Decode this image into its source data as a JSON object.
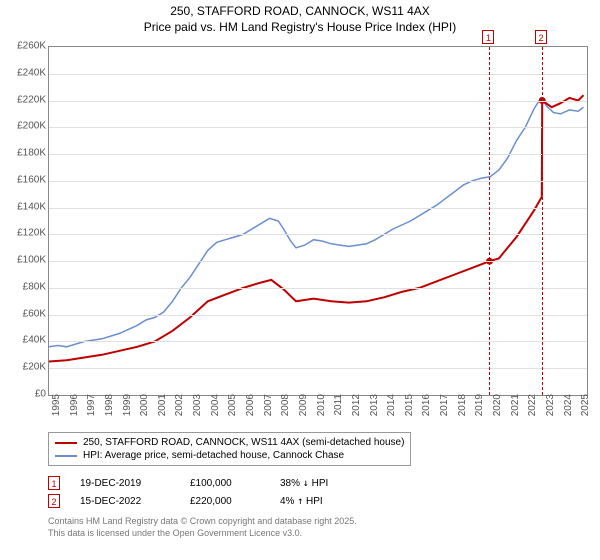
{
  "title": {
    "line1": "250, STAFFORD ROAD, CANNOCK, WS11 4AX",
    "line2": "Price paid vs. HM Land Registry's House Price Index (HPI)"
  },
  "chart": {
    "type": "line",
    "background_color": "#ffffff",
    "grid_color": "#e0e0e0",
    "axis_color": "#888888",
    "ylim": [
      0,
      260000
    ],
    "ytick_step": 20000,
    "ytick_prefix": "£",
    "ytick_suffix": "K",
    "xlim": [
      1995,
      2025.5
    ],
    "xtick_step": 1,
    "label_fontsize": 10,
    "series": [
      {
        "name": "price_paid",
        "label": "250, STAFFORD ROAD, CANNOCK, WS11 4AX (semi-detached house)",
        "color": "#c00000",
        "line_width": 2,
        "points": [
          [
            1995.0,
            25000
          ],
          [
            1996.0,
            26000
          ],
          [
            1997.0,
            28000
          ],
          [
            1998.0,
            30000
          ],
          [
            1999.0,
            33000
          ],
          [
            2000.0,
            36000
          ],
          [
            2001.0,
            40000
          ],
          [
            2002.0,
            48000
          ],
          [
            2003.0,
            58000
          ],
          [
            2004.0,
            70000
          ],
          [
            2005.0,
            75000
          ],
          [
            2006.0,
            80000
          ],
          [
            2007.0,
            84000
          ],
          [
            2007.6,
            86000
          ],
          [
            2008.3,
            79000
          ],
          [
            2009.0,
            70000
          ],
          [
            2010.0,
            72000
          ],
          [
            2011.0,
            70000
          ],
          [
            2012.0,
            69000
          ],
          [
            2013.0,
            70000
          ],
          [
            2014.0,
            73000
          ],
          [
            2015.0,
            77000
          ],
          [
            2016.0,
            80000
          ],
          [
            2017.0,
            85000
          ],
          [
            2018.0,
            90000
          ],
          [
            2019.0,
            95000
          ],
          [
            2019.97,
            100000
          ],
          [
            2020.5,
            102000
          ],
          [
            2021.0,
            110000
          ],
          [
            2021.5,
            118000
          ],
          [
            2022.0,
            128000
          ],
          [
            2022.5,
            138000
          ],
          [
            2022.94,
            148000
          ],
          [
            2022.96,
            220000
          ],
          [
            2023.5,
            215000
          ],
          [
            2024.0,
            218000
          ],
          [
            2024.5,
            222000
          ],
          [
            2025.0,
            220000
          ],
          [
            2025.3,
            224000
          ]
        ]
      },
      {
        "name": "hpi",
        "label": "HPI: Average price, semi-detached house, Cannock Chase",
        "color": "#6a8fcf",
        "line_width": 1.5,
        "points": [
          [
            1995.0,
            36000
          ],
          [
            1995.5,
            37000
          ],
          [
            1996.0,
            36000
          ],
          [
            1996.5,
            38000
          ],
          [
            1997.0,
            40000
          ],
          [
            1997.5,
            41000
          ],
          [
            1998.0,
            42000
          ],
          [
            1998.5,
            44000
          ],
          [
            1999.0,
            46000
          ],
          [
            1999.5,
            49000
          ],
          [
            2000.0,
            52000
          ],
          [
            2000.5,
            56000
          ],
          [
            2001.0,
            58000
          ],
          [
            2001.5,
            62000
          ],
          [
            2002.0,
            70000
          ],
          [
            2002.5,
            80000
          ],
          [
            2003.0,
            88000
          ],
          [
            2003.5,
            98000
          ],
          [
            2004.0,
            108000
          ],
          [
            2004.5,
            114000
          ],
          [
            2005.0,
            116000
          ],
          [
            2005.5,
            118000
          ],
          [
            2006.0,
            120000
          ],
          [
            2006.5,
            124000
          ],
          [
            2007.0,
            128000
          ],
          [
            2007.5,
            132000
          ],
          [
            2008.0,
            130000
          ],
          [
            2008.3,
            124000
          ],
          [
            2008.7,
            115000
          ],
          [
            2009.0,
            110000
          ],
          [
            2009.5,
            112000
          ],
          [
            2010.0,
            116000
          ],
          [
            2010.5,
            115000
          ],
          [
            2011.0,
            113000
          ],
          [
            2011.5,
            112000
          ],
          [
            2012.0,
            111000
          ],
          [
            2012.5,
            112000
          ],
          [
            2013.0,
            113000
          ],
          [
            2013.5,
            116000
          ],
          [
            2014.0,
            120000
          ],
          [
            2014.5,
            124000
          ],
          [
            2015.0,
            127000
          ],
          [
            2015.5,
            130000
          ],
          [
            2016.0,
            134000
          ],
          [
            2016.5,
            138000
          ],
          [
            2017.0,
            142000
          ],
          [
            2017.5,
            147000
          ],
          [
            2018.0,
            152000
          ],
          [
            2018.5,
            157000
          ],
          [
            2019.0,
            160000
          ],
          [
            2019.5,
            162000
          ],
          [
            2020.0,
            163000
          ],
          [
            2020.5,
            168000
          ],
          [
            2021.0,
            177000
          ],
          [
            2021.5,
            190000
          ],
          [
            2022.0,
            200000
          ],
          [
            2022.5,
            214000
          ],
          [
            2022.9,
            222000
          ],
          [
            2023.2,
            216000
          ],
          [
            2023.6,
            211000
          ],
          [
            2024.0,
            210000
          ],
          [
            2024.5,
            213000
          ],
          [
            2025.0,
            212000
          ],
          [
            2025.3,
            215000
          ]
        ]
      }
    ],
    "markers": [
      {
        "id": "1",
        "x": 2019.97,
        "date": "19-DEC-2019",
        "price": "£100,000",
        "delta_pct": "38%",
        "delta_dir": "↓",
        "delta_label": "HPI",
        "point_y": 100000,
        "point_color": "#c00000",
        "box_border": "#c00000",
        "box_text": "#c00000"
      },
      {
        "id": "2",
        "x": 2022.96,
        "date": "15-DEC-2022",
        "price": "£220,000",
        "delta_pct": "4%",
        "delta_dir": "↑",
        "delta_label": "HPI",
        "point_y": 220000,
        "point_color": "#c00000",
        "box_border": "#c00000",
        "box_text": "#c00000"
      }
    ]
  },
  "footer": {
    "line1": "Contains HM Land Registry data © Crown copyright and database right 2025.",
    "line2": "This data is licensed under the Open Government Licence v3.0."
  }
}
